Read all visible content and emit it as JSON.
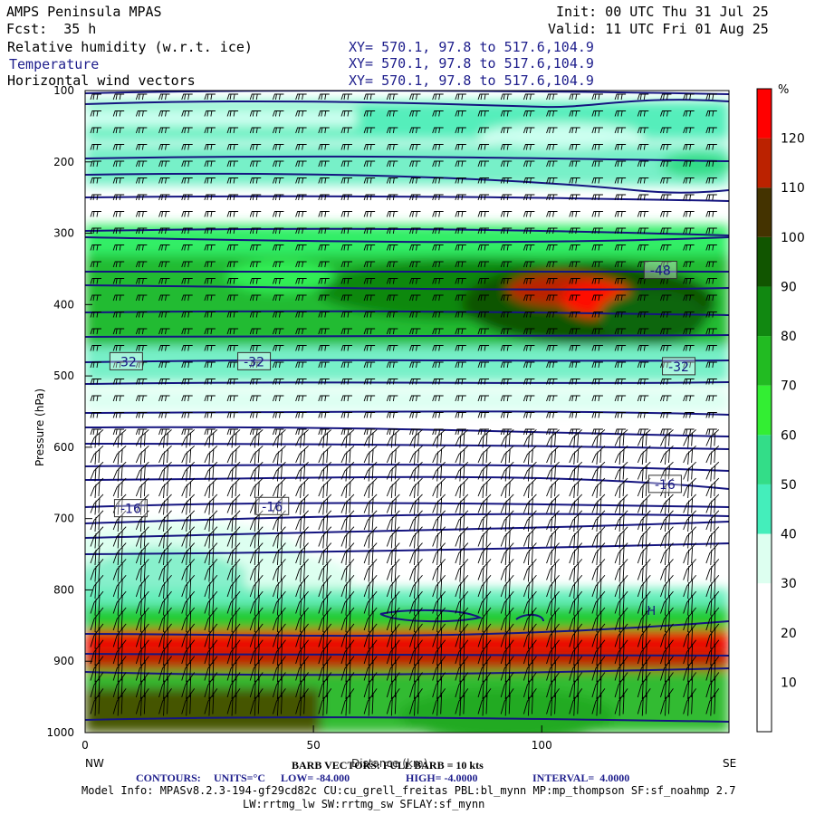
{
  "header": {
    "model": "AMPS Peninsula MPAS",
    "init": "Init: 00 UTC Thu 31 Jul 25",
    "fcst": "Fcst:  35 h",
    "valid": "Valid: 11 UTC Fri 01 Aug 25"
  },
  "fields": [
    {
      "label": "Relative humidity (w.r.t. ice)",
      "xy": "XY= 570.1, 97.8 to 517.6,104.9",
      "color": "#000000"
    },
    {
      "label": "Temperature",
      "xy": "XY= 570.1, 97.8 to 517.6,104.9",
      "color": "#1e1e8c"
    },
    {
      "label": "Horizontal wind vectors",
      "xy": "XY= 570.1, 97.8 to 517.6,104.9",
      "color": "#000000"
    }
  ],
  "chart_data": {
    "type": "heatmap",
    "title": "Relative humidity (w.r.t. ice)",
    "xlabel": "Distance (km)",
    "ylabel": "Pressure (hPa)",
    "xlim": [
      0,
      141
    ],
    "ylim": [
      1000,
      100
    ],
    "x_ticks": [
      0,
      50,
      100
    ],
    "y_ticks": [
      100,
      200,
      300,
      400,
      500,
      600,
      700,
      800,
      900,
      1000
    ],
    "x_end_labels": {
      "left": "NW",
      "right": "SE"
    },
    "colorbar": {
      "unit": "%",
      "levels": [
        10,
        20,
        30,
        40,
        50,
        60,
        70,
        80,
        90,
        100,
        110,
        120
      ],
      "colors": [
        "#ffffff",
        "#ffffff",
        "#ffffff",
        "#ddfff0",
        "#44eebb",
        "#33dd88",
        "#33ee33",
        "#22bb22",
        "#118811",
        "#115500",
        "#443300",
        "#bb2200",
        "#ff0000"
      ]
    },
    "temperature_labels": [
      {
        "text": "-48",
        "x": 126,
        "p": 352
      },
      {
        "text": "-32",
        "x": 9,
        "p": 480
      },
      {
        "text": "-32",
        "x": 37,
        "p": 480
      },
      {
        "text": "-32",
        "x": 130,
        "p": 487
      },
      {
        "text": "-16",
        "x": 127,
        "p": 652
      },
      {
        "text": "-16",
        "x": 10,
        "p": 686
      },
      {
        "text": "-16",
        "x": 41,
        "p": 683
      }
    ],
    "temperature_marks": [
      {
        "text": "H",
        "x": 124,
        "p": 835
      }
    ],
    "barb_note": "BARB VECTORS: FULL BARB = 10 kts",
    "contours_note": {
      "label": "CONTOURS:",
      "units": "UNITS=°C",
      "low": "LOW= -84.000",
      "high": "HIGH= -4.0000",
      "interval": "INTERVAL=  4.0000"
    }
  },
  "footer": {
    "model_info": "Model Info: MPASv8.2.3-194-gf29cd82c CU:cu_grell_freitas PBL:bl_mynn MP:mp_thompson SF:sf_noahmp 2.7",
    "model_info2": "LW:rrtmg_lw SW:rrtmg_sw SFLAY:sf_mynn"
  }
}
